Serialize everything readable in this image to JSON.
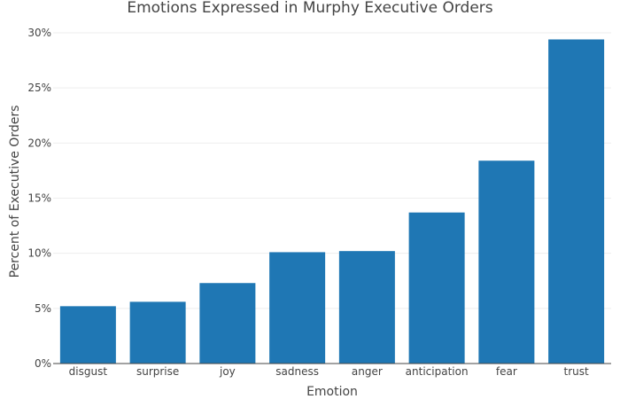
{
  "chart_data": {
    "type": "bar",
    "title": "Emotions Expressed in Murphy Executive Orders",
    "xlabel": "Emotion",
    "ylabel": "Percent of Executive Orders",
    "categories": [
      "disgust",
      "surprise",
      "joy",
      "sadness",
      "anger",
      "anticipation",
      "fear",
      "trust"
    ],
    "values": [
      5.2,
      5.6,
      7.3,
      10.1,
      10.2,
      13.7,
      18.4,
      29.4
    ],
    "ylim": [
      0,
      30
    ],
    "yticks": [
      0,
      5,
      10,
      15,
      20,
      25,
      30
    ],
    "ytick_labels": [
      "0%",
      "5%",
      "10%",
      "15%",
      "20%",
      "25%",
      "30%"
    ],
    "bar_color": "#1f77b4",
    "grid": true,
    "legend": "none"
  }
}
